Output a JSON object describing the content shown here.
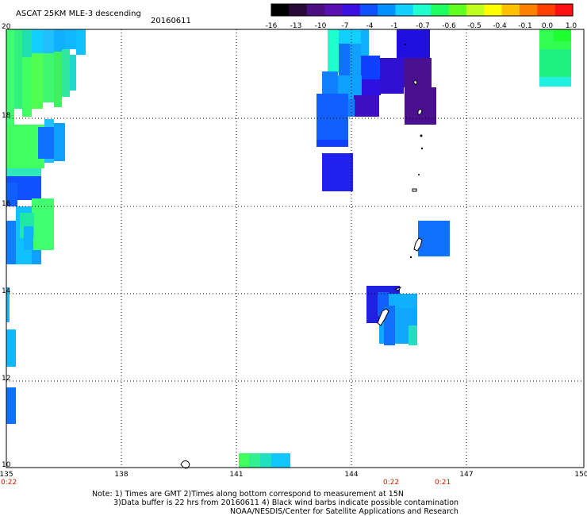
{
  "header": {
    "title": "ASCAT 25KM MLE-3 descending",
    "date": "20160611"
  },
  "colorbar": {
    "labels": [
      "-16",
      "-13",
      "-10",
      "-7",
      "-4",
      "-1",
      "-0.7",
      "-0.6",
      "-0.5",
      "-0.4",
      "-0.1",
      "0.0",
      "1.0"
    ],
    "colors": [
      "#000000",
      "#2a0a3a",
      "#4a1080",
      "#5a10b0",
      "#3a10e0",
      "#1050ff",
      "#0090ff",
      "#10d0ff",
      "#20ffd0",
      "#20ff60",
      "#60ff20",
      "#c0ff20",
      "#ffff00",
      "#ffc000",
      "#ff8000",
      "#ff4000",
      "#ff1010"
    ]
  },
  "map": {
    "lon_range": [
      135,
      150
    ],
    "lat_range": [
      10,
      20
    ],
    "lon_labels": [
      "135",
      "138",
      "141",
      "144",
      "147",
      "150"
    ],
    "lat_labels": [
      "20",
      "18",
      "16",
      "14",
      "12",
      "10"
    ]
  },
  "time_labels": [
    "0:22",
    "0:22",
    "0:21"
  ],
  "notes": [
    "Note: 1) Times are GMT 2)Times along bottom correspond to measurement at 15N",
    "3)Data buffer is 22 hrs from 20160611 4) Black wind barbs indicate possible contamination",
    "NOAA/NESDIS/Center for Satellite Applications and Research"
  ]
}
